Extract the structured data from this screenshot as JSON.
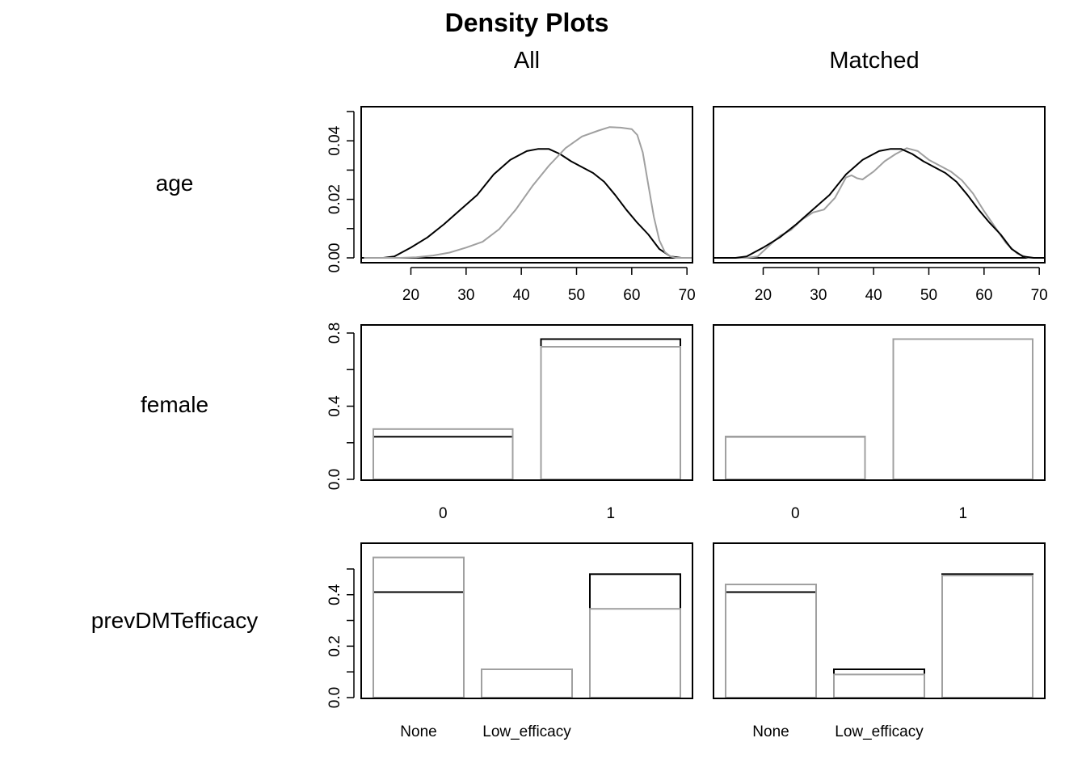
{
  "chart_data": {
    "title": "Density Plots",
    "column_titles": [
      "All",
      "Matched"
    ],
    "row_labels": [
      "age",
      "female",
      "prevDMTefficacy"
    ],
    "colors": {
      "treated": "#000000",
      "control": "#a0a0a0"
    },
    "panels": [
      {
        "row": "age",
        "column": "All",
        "type": "line",
        "xlim": [
          11,
          71
        ],
        "ylim": [
          0,
          0.05
        ],
        "x_ticks": [
          20,
          30,
          40,
          50,
          60,
          70
        ],
        "y_ticks": [
          0.0,
          0.02,
          0.04
        ],
        "y_tick_labels": [
          "0.00",
          "0.02",
          "0.04"
        ],
        "series": [
          {
            "color": "#000000",
            "x": [
              11.5,
              15,
              17,
              20,
              23,
              26,
              29,
              32,
              35,
              38,
              41,
              43,
              45,
              47,
              49,
              51,
              53,
              55,
              57,
              59,
              61,
              63,
              65,
              67,
              69,
              71
            ],
            "y": [
              0.0,
              0.0,
              0.0005,
              0.0035,
              0.007,
              0.0115,
              0.0165,
              0.0215,
              0.0285,
              0.0335,
              0.0365,
              0.0372,
              0.0372,
              0.0355,
              0.033,
              0.031,
              0.029,
              0.026,
              0.0215,
              0.0165,
              0.012,
              0.008,
              0.003,
              0.0005,
              0.0,
              0.0
            ]
          },
          {
            "color": "#a0a0a0",
            "x": [
              11.5,
              18,
              21,
              24,
              27,
              30,
              33,
              36,
              39,
              42,
              45,
              48,
              51,
              54,
              56,
              58,
              60,
              61,
              62,
              63,
              64,
              65,
              66,
              67,
              68,
              71
            ],
            "y": [
              0.0,
              0.0,
              0.0002,
              0.0008,
              0.0018,
              0.0035,
              0.0055,
              0.0098,
              0.0165,
              0.0245,
              0.0315,
              0.0375,
              0.0415,
              0.0435,
              0.0447,
              0.0445,
              0.044,
              0.042,
              0.036,
              0.025,
              0.014,
              0.006,
              0.002,
              0.0005,
              0.0,
              0.0
            ]
          }
        ]
      },
      {
        "row": "age",
        "column": "Matched",
        "type": "line",
        "xlim": [
          11,
          71
        ],
        "ylim": [
          0,
          0.05
        ],
        "x_ticks": [
          20,
          30,
          40,
          50,
          60,
          70
        ],
        "series": [
          {
            "color": "#a0a0a0",
            "x": [
              11.5,
              15,
              17,
              19,
              21,
              23,
              25,
              27,
              29,
              31,
              33,
              35,
              36,
              37,
              38,
              40,
              42,
              44,
              46,
              48,
              50,
              52,
              54,
              56,
              58,
              60,
              62,
              64,
              66,
              68,
              71
            ],
            "y": [
              0.0,
              0.0,
              0.0,
              0.0005,
              0.004,
              0.0075,
              0.0095,
              0.013,
              0.0155,
              0.0165,
              0.0205,
              0.0275,
              0.0282,
              0.0272,
              0.0268,
              0.0295,
              0.033,
              0.0355,
              0.0375,
              0.0365,
              0.0335,
              0.0315,
              0.0295,
              0.0265,
              0.022,
              0.016,
              0.0105,
              0.005,
              0.0015,
              0.0,
              0.0
            ]
          },
          {
            "color": "#000000",
            "x": [
              11.5,
              15,
              17,
              20,
              23,
              26,
              29,
              32,
              35,
              38,
              41,
              43,
              45,
              47,
              49,
              51,
              53,
              55,
              57,
              59,
              61,
              63,
              65,
              67,
              69,
              71
            ],
            "y": [
              0.0,
              0.0,
              0.0005,
              0.0035,
              0.007,
              0.0115,
              0.0165,
              0.0215,
              0.0285,
              0.0335,
              0.0365,
              0.0372,
              0.0372,
              0.0355,
              0.033,
              0.031,
              0.029,
              0.026,
              0.0215,
              0.0165,
              0.012,
              0.008,
              0.003,
              0.0005,
              0.0,
              0.0
            ]
          }
        ]
      },
      {
        "row": "female",
        "column": "All",
        "type": "bar",
        "categories": [
          "0",
          "1"
        ],
        "ylim": [
          0,
          0.8
        ],
        "y_ticks": [
          0.0,
          0.4,
          0.8
        ],
        "y_tick_labels": [
          "0.0",
          "0.4",
          "0.8"
        ],
        "series": [
          {
            "color": "#000000",
            "values": [
              0.233,
              0.767
            ]
          },
          {
            "color": "#a0a0a0",
            "values": [
              0.275,
              0.725
            ]
          }
        ]
      },
      {
        "row": "female",
        "column": "Matched",
        "type": "bar",
        "categories": [
          "0",
          "1"
        ],
        "ylim": [
          0,
          0.8
        ],
        "series": [
          {
            "color": "#000000",
            "values": [
              0.233,
              0.767
            ]
          },
          {
            "color": "#a0a0a0",
            "values": [
              0.233,
              0.767
            ]
          }
        ]
      },
      {
        "row": "prevDMTefficacy",
        "column": "All",
        "type": "bar",
        "categories": [
          "None",
          "Low_efficacy",
          ""
        ],
        "ylim": [
          0,
          0.55
        ],
        "y_ticks": [
          0.0,
          0.1,
          0.2,
          0.3,
          0.4,
          0.5
        ],
        "y_tick_labels": [
          "0.0",
          "",
          "0.2",
          "",
          "0.4",
          ""
        ],
        "series": [
          {
            "color": "#000000",
            "values": [
              0.41,
              0.11,
              0.48
            ]
          },
          {
            "color": "#a0a0a0",
            "values": [
              0.545,
              0.11,
              0.345
            ]
          }
        ]
      },
      {
        "row": "prevDMTefficacy",
        "column": "Matched",
        "type": "bar",
        "categories": [
          "None",
          "Low_efficacy",
          ""
        ],
        "ylim": [
          0,
          0.55
        ],
        "series": [
          {
            "color": "#000000",
            "values": [
              0.41,
              0.11,
              0.48
            ]
          },
          {
            "color": "#a0a0a0",
            "values": [
              0.44,
              0.09,
              0.475
            ]
          }
        ]
      }
    ]
  }
}
